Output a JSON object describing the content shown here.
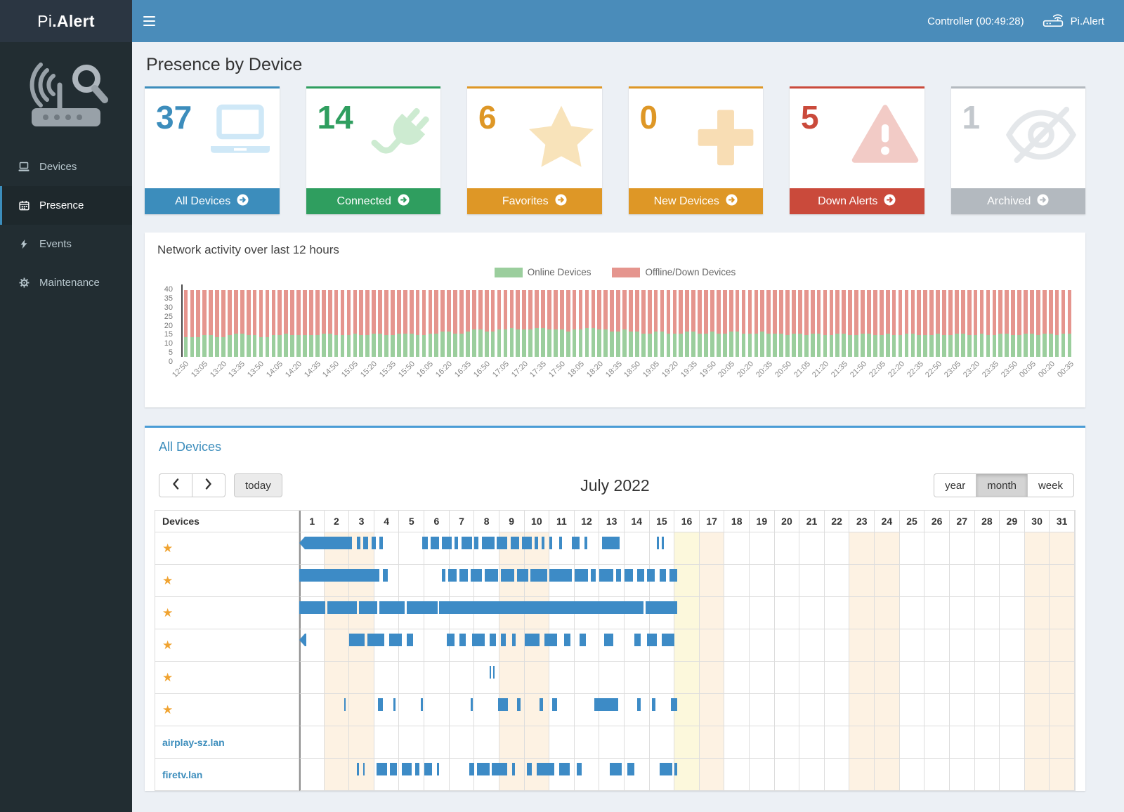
{
  "header": {
    "logo_light": "Pi",
    "logo_bold": ".Alert",
    "controller_label": "Controller (00:49:28)",
    "brand_label": "Pi.Alert"
  },
  "sidebar": {
    "items": [
      {
        "label": "Devices",
        "icon": "laptop-icon",
        "active": false
      },
      {
        "label": "Presence",
        "icon": "calendar-icon",
        "active": true
      },
      {
        "label": "Events",
        "icon": "bolt-icon",
        "active": false
      },
      {
        "label": "Maintenance",
        "icon": "gear-icon",
        "active": false
      }
    ]
  },
  "page": {
    "title": "Presence by Device"
  },
  "summary_cards": [
    {
      "count": "37",
      "label": "All Devices",
      "color": "#3c8dbc",
      "number_color": "#3c8dbc",
      "icon": "laptop-icon",
      "icon_color": "#cfe8f7"
    },
    {
      "count": "14",
      "label": "Connected",
      "color": "#2f9e5f",
      "number_color": "#2f9e5f",
      "icon": "plug-icon",
      "icon_color": "#cdebd1"
    },
    {
      "count": "6",
      "label": "Favorites",
      "color": "#de9726",
      "number_color": "#de9726",
      "icon": "star-icon",
      "icon_color": "#f8e3ba"
    },
    {
      "count": "0",
      "label": "New Devices",
      "color": "#de9726",
      "number_color": "#de9726",
      "icon": "plus-icon",
      "icon_color": "#f8ddb4"
    },
    {
      "count": "5",
      "label": "Down Alerts",
      "color": "#ca4a3b",
      "number_color": "#ca4a3b",
      "icon": "warning-icon",
      "icon_color": "#f2cbc6"
    },
    {
      "count": "1",
      "label": "Archived",
      "color": "#b3b9bf",
      "number_color": "#c3c8cd",
      "icon": "eye-slash-icon",
      "icon_color": "#e4e7ea"
    }
  ],
  "activity_panel": {
    "title": "Network activity over last 12 hours"
  },
  "chart_data": {
    "type": "bar",
    "stacked": true,
    "title": "Network activity over last 12 hours",
    "legend_position": "top-center",
    "ylim": [
      0,
      40
    ],
    "yticks": [
      0,
      5,
      10,
      15,
      20,
      25,
      30,
      35,
      40
    ],
    "x_start": "12:50",
    "x_interval_minutes": 5,
    "label_every_n_bars": 3,
    "x_tick_labels": [
      "12:50",
      "13:05",
      "13:20",
      "13:35",
      "13:50",
      "14:05",
      "14:20",
      "14:35",
      "14:50",
      "15:05",
      "15:20",
      "15:35",
      "15:50",
      "16:05",
      "16:20",
      "16:35",
      "16:50",
      "17:05",
      "17:20",
      "17:35",
      "17:50",
      "18:05",
      "18:20",
      "18:35",
      "18:50",
      "19:05",
      "19:20",
      "19:35",
      "19:50",
      "20:05",
      "20:20",
      "20:35",
      "20:50",
      "21:05",
      "21:20",
      "21:35",
      "21:50",
      "22:05",
      "22:20",
      "22:35",
      "22:50",
      "23:05",
      "23:20",
      "23:35",
      "23:50",
      "00:05",
      "00:20",
      "00:35"
    ],
    "series": [
      {
        "name": "Online Devices",
        "color": "#9bce9d",
        "values": [
          11,
          11,
          11,
          12,
          12,
          11,
          11,
          12,
          13,
          13,
          12,
          12,
          11,
          11,
          12,
          12,
          13,
          12,
          12,
          12,
          12,
          12,
          13,
          13,
          12,
          12,
          12,
          13,
          12,
          12,
          13,
          13,
          12,
          12,
          13,
          13,
          13,
          12,
          12,
          13,
          13,
          14,
          14,
          13,
          13,
          14,
          15,
          15,
          14,
          14,
          15,
          15,
          16,
          15,
          15,
          15,
          16,
          16,
          15,
          15,
          15,
          14,
          15,
          15,
          16,
          16,
          15,
          15,
          14,
          14,
          15,
          14,
          14,
          13,
          13,
          14,
          14,
          13,
          13,
          13,
          14,
          14,
          13,
          13,
          14,
          13,
          13,
          14,
          14,
          13,
          13,
          13,
          14,
          13,
          13,
          13,
          12,
          13,
          13,
          12,
          13,
          13,
          12,
          12,
          13,
          13,
          12,
          12,
          13,
          13,
          12,
          12,
          13,
          12,
          12,
          13,
          13,
          12,
          12,
          12,
          13,
          12,
          12,
          13,
          13,
          12,
          12,
          13,
          12,
          12,
          13,
          13,
          12,
          12,
          13,
          13,
          12,
          13,
          13,
          12,
          13,
          13
        ]
      },
      {
        "name": "Offline/Down Devices",
        "color": "#e5958e",
        "values": [
          26,
          26,
          26,
          25,
          25,
          26,
          26,
          25,
          24,
          24,
          25,
          25,
          26,
          26,
          25,
          25,
          24,
          25,
          25,
          25,
          25,
          25,
          24,
          24,
          25,
          25,
          25,
          24,
          25,
          25,
          24,
          24,
          25,
          25,
          24,
          24,
          24,
          25,
          25,
          24,
          24,
          23,
          23,
          24,
          24,
          23,
          22,
          22,
          23,
          23,
          22,
          22,
          21,
          22,
          22,
          22,
          21,
          21,
          22,
          22,
          22,
          23,
          22,
          22,
          21,
          21,
          22,
          22,
          23,
          23,
          22,
          23,
          23,
          24,
          24,
          23,
          23,
          24,
          24,
          24,
          23,
          23,
          24,
          24,
          23,
          24,
          24,
          23,
          23,
          24,
          24,
          24,
          23,
          24,
          24,
          24,
          25,
          24,
          24,
          25,
          24,
          24,
          25,
          25,
          24,
          24,
          25,
          25,
          24,
          24,
          25,
          25,
          24,
          25,
          25,
          24,
          24,
          25,
          25,
          25,
          24,
          25,
          25,
          24,
          24,
          25,
          25,
          24,
          25,
          25,
          24,
          24,
          25,
          25,
          24,
          24,
          25,
          24,
          24,
          25,
          24,
          24
        ]
      }
    ]
  },
  "calendar": {
    "panel_title": "All Devices",
    "toolbar": {
      "today_label": "today",
      "title": "July 2022",
      "views": [
        "year",
        "month",
        "week"
      ],
      "active_view": "month"
    },
    "devices_header": "Devices",
    "days": [
      1,
      2,
      3,
      4,
      5,
      6,
      7,
      8,
      9,
      10,
      11,
      12,
      13,
      14,
      15,
      16,
      17,
      18,
      19,
      20,
      21,
      22,
      23,
      24,
      25,
      26,
      27,
      28,
      29,
      30,
      31
    ],
    "weekend_days": [
      2,
      3,
      9,
      10,
      17,
      23,
      24,
      30,
      31
    ],
    "today_day": 16,
    "bar_color": "#3d8bc6",
    "rows": [
      {
        "name": "",
        "favorite": true,
        "continues_left": true,
        "segments": [
          [
            0,
            2.1
          ],
          [
            2.3,
            2.45
          ],
          [
            2.55,
            2.75
          ],
          [
            2.9,
            3.05
          ],
          [
            3.2,
            3.35
          ],
          [
            4.9,
            5.15
          ],
          [
            5.25,
            5.6
          ],
          [
            5.7,
            6.1
          ],
          [
            6.2,
            6.35
          ],
          [
            6.5,
            6.9
          ],
          [
            7.0,
            7.15
          ],
          [
            7.3,
            7.8
          ],
          [
            7.9,
            8.3
          ],
          [
            8.45,
            8.8
          ],
          [
            8.9,
            9.3
          ],
          [
            9.4,
            9.55
          ],
          [
            9.7,
            9.8
          ],
          [
            10.0,
            10.1
          ],
          [
            10.4,
            10.5
          ],
          [
            10.9,
            11.2
          ],
          [
            11.4,
            11.5
          ],
          [
            12.1,
            12.8
          ],
          [
            14.3,
            14.38
          ],
          [
            14.5,
            14.56
          ]
        ]
      },
      {
        "name": "",
        "favorite": true,
        "continues_left": false,
        "segments": [
          [
            0,
            3.2
          ],
          [
            3.35,
            3.55
          ],
          [
            5.7,
            5.85
          ],
          [
            5.95,
            6.3
          ],
          [
            6.4,
            6.75
          ],
          [
            6.85,
            7.3
          ],
          [
            7.4,
            7.95
          ],
          [
            8.05,
            8.6
          ],
          [
            8.7,
            9.15
          ],
          [
            9.25,
            9.9
          ],
          [
            10.0,
            10.9
          ],
          [
            11.0,
            11.55
          ],
          [
            11.65,
            11.85
          ],
          [
            12.0,
            12.55
          ],
          [
            12.65,
            12.85
          ],
          [
            13.0,
            13.35
          ],
          [
            13.5,
            13.8
          ],
          [
            13.9,
            14.2
          ],
          [
            14.4,
            14.65
          ],
          [
            14.8,
            15.1
          ]
        ]
      },
      {
        "name": "",
        "favorite": true,
        "continues_left": false,
        "segments": [
          [
            0,
            1.05
          ],
          [
            1.12,
            2.3
          ],
          [
            2.38,
            3.12
          ],
          [
            3.2,
            4.22
          ],
          [
            4.3,
            5.52
          ],
          [
            5.6,
            13.75
          ],
          [
            13.85,
            15.1
          ]
        ]
      },
      {
        "name": "",
        "favorite": true,
        "continues_left": true,
        "segments": [
          [
            0,
            0.12
          ],
          [
            2.0,
            2.6
          ],
          [
            2.72,
            3.4
          ],
          [
            3.6,
            4.1
          ],
          [
            4.3,
            4.55
          ],
          [
            5.9,
            6.2
          ],
          [
            6.4,
            6.65
          ],
          [
            6.9,
            7.4
          ],
          [
            7.6,
            7.85
          ],
          [
            8.05,
            8.25
          ],
          [
            8.5,
            8.65
          ],
          [
            9.0,
            9.6
          ],
          [
            9.8,
            10.3
          ],
          [
            10.6,
            10.85
          ],
          [
            11.2,
            11.45
          ],
          [
            12.2,
            12.55
          ],
          [
            13.4,
            13.65
          ],
          [
            13.9,
            14.3
          ],
          [
            14.5,
            15.0
          ]
        ]
      },
      {
        "name": "",
        "favorite": true,
        "continues_left": false,
        "segments": [
          [
            7.62,
            7.68
          ],
          [
            7.74,
            7.8
          ]
        ]
      },
      {
        "name": "",
        "favorite": true,
        "continues_left": false,
        "segments": [
          [
            1.8,
            1.86
          ],
          [
            3.15,
            3.35
          ],
          [
            3.75,
            3.85
          ],
          [
            4.85,
            4.95
          ],
          [
            6.85,
            6.95
          ],
          [
            7.95,
            8.35
          ],
          [
            8.7,
            8.85
          ],
          [
            9.6,
            9.75
          ],
          [
            10.1,
            10.3
          ],
          [
            11.8,
            12.75
          ],
          [
            13.5,
            13.65
          ],
          [
            14.1,
            14.25
          ],
          [
            14.85,
            15.1
          ]
        ]
      },
      {
        "name": "airplay-sz.lan",
        "favorite": false,
        "continues_left": false,
        "segments": []
      },
      {
        "name": "firetv.lan",
        "favorite": false,
        "continues_left": false,
        "segments": [
          [
            2.3,
            2.4
          ],
          [
            2.55,
            2.6
          ],
          [
            3.1,
            3.5
          ],
          [
            3.62,
            3.9
          ],
          [
            4.1,
            4.5
          ],
          [
            4.62,
            4.8
          ],
          [
            5.0,
            5.3
          ],
          [
            5.5,
            5.58
          ],
          [
            6.8,
            7.0
          ],
          [
            7.1,
            7.6
          ],
          [
            7.7,
            8.3
          ],
          [
            8.5,
            8.62
          ],
          [
            9.1,
            9.3
          ],
          [
            9.5,
            10.2
          ],
          [
            10.4,
            10.8
          ],
          [
            11.1,
            11.3
          ],
          [
            12.4,
            12.9
          ],
          [
            13.1,
            13.4
          ],
          [
            14.4,
            14.9
          ],
          [
            15.0,
            15.12
          ]
        ]
      }
    ]
  }
}
